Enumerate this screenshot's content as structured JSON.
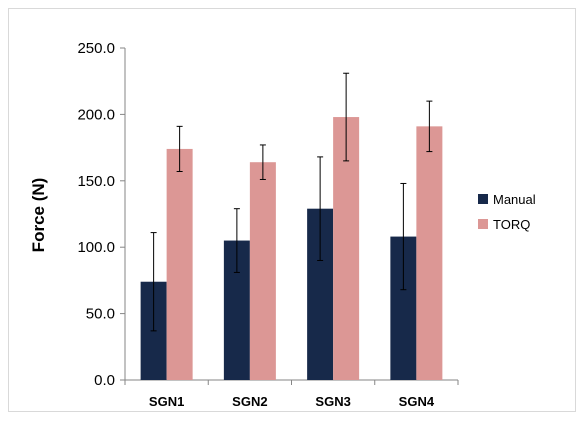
{
  "chart_data": {
    "type": "bar",
    "ylabel": "Force  (N)",
    "xlabel": "",
    "ylim": [
      0,
      250
    ],
    "yticks": [
      0.0,
      50.0,
      100.0,
      150.0,
      200.0,
      250.0
    ],
    "ytick_labels": [
      "0.0",
      "50.0",
      "100.0",
      "150.0",
      "200.0",
      "250.0"
    ],
    "categories": [
      "SGN1",
      "SGN2",
      "SGN3",
      "SGN4"
    ],
    "series": [
      {
        "name": "Manual",
        "color": "#17294a",
        "values": [
          74,
          105,
          129,
          108
        ],
        "error": [
          37,
          24,
          39,
          40
        ]
      },
      {
        "name": "TORQ",
        "color": "#dc9795",
        "values": [
          174,
          164,
          198,
          191
        ],
        "error": [
          17,
          13,
          33,
          19
        ]
      }
    ],
    "legend_position": "right",
    "grid": false
  }
}
